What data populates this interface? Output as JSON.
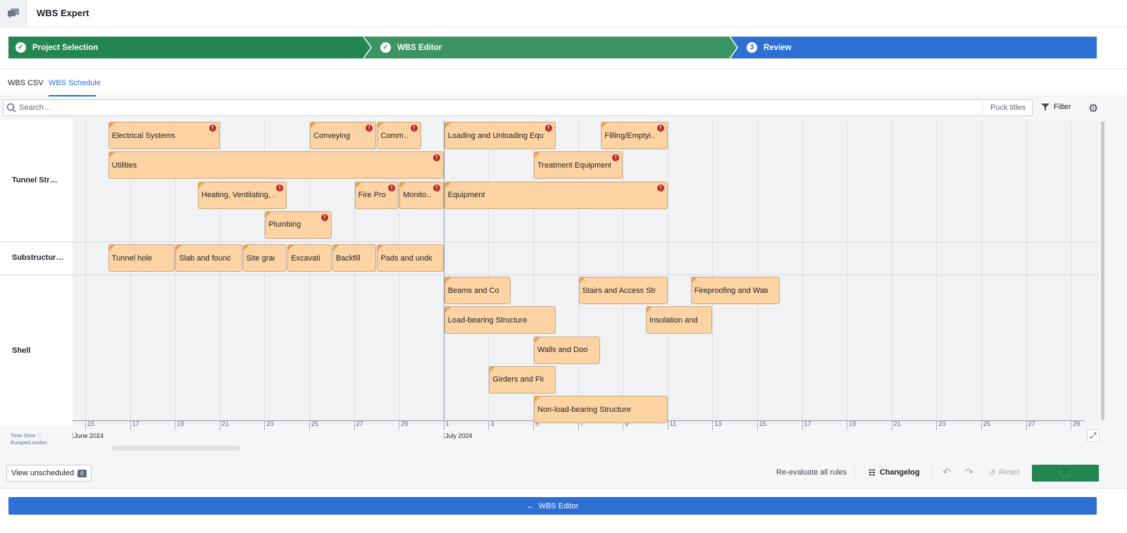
{
  "app": {
    "title": "WBS Expert",
    "icon": "chat-icon"
  },
  "steps": [
    {
      "label": "Project Selection",
      "state": "done",
      "color": "#23854f"
    },
    {
      "label": "WBS Editor",
      "state": "done",
      "color": "#3d9463"
    },
    {
      "label": "Review",
      "number": "3",
      "state": "active",
      "color": "#2d6fd2"
    }
  ],
  "tabs": [
    {
      "label": "WBS CSV"
    },
    {
      "label": "WBS Schedule",
      "active": true
    }
  ],
  "toolbar": {
    "search_placeholder": "Search…",
    "puck_titles": "Puck titles",
    "filter": "Filter"
  },
  "timeline": {
    "ticks": [
      "15",
      "17",
      "19",
      "21",
      "23",
      "25",
      "27",
      "29",
      "1",
      "3",
      "5",
      "7",
      "9",
      "11",
      "13",
      "15",
      "17",
      "19",
      "21",
      "23",
      "25",
      "27",
      "29"
    ],
    "months": [
      "June 2024",
      "July 2024"
    ],
    "timezone_label": "Time Zone",
    "timezone": "Europe/London",
    "rows": [
      {
        "label": "Tunnel Str…",
        "pucks": [
          {
            "title": "Electrical Systems",
            "start": "2024-06-16",
            "end": "2024-06-21",
            "lane": 0,
            "error": true
          },
          {
            "title": "Conveying",
            "start": "2024-06-25",
            "end": "2024-06-28",
            "lane": 0,
            "error": true
          },
          {
            "title": "Comm…",
            "start": "2024-06-28",
            "end": "2024-06-30",
            "lane": 0,
            "error": true
          },
          {
            "title": "Loading and Unloading Equi…",
            "start": "2024-07-01",
            "end": "2024-07-06",
            "lane": 0,
            "error": true
          },
          {
            "title": "Filling/Emptyi…",
            "start": "2024-07-08",
            "end": "2024-07-11",
            "lane": 0,
            "error": true
          },
          {
            "title": "Utilities",
            "start": "2024-06-16",
            "end": "2024-07-01",
            "lane": 1,
            "error": true
          },
          {
            "title": "Treatment Equipment",
            "start": "2024-07-05",
            "end": "2024-07-09",
            "lane": 1,
            "error": true
          },
          {
            "title": "Heating, Ventilating, …",
            "start": "2024-06-20",
            "end": "2024-06-24",
            "lane": 2,
            "error": true
          },
          {
            "title": "Fire Pro…",
            "start": "2024-06-27",
            "end": "2024-06-29",
            "lane": 2,
            "error": true
          },
          {
            "title": "Monito…",
            "start": "2024-06-29",
            "end": "2024-07-01",
            "lane": 2,
            "error": true
          },
          {
            "title": "Equipment",
            "start": "2024-07-01",
            "end": "2024-07-11",
            "lane": 2,
            "error": true
          },
          {
            "title": "Plumbing",
            "start": "2024-06-23",
            "end": "2024-06-26",
            "lane": 3,
            "error": true
          }
        ]
      },
      {
        "label": "Substructur…",
        "pucks": [
          {
            "title": "Tunnel hole",
            "start": "2024-06-16",
            "end": "2024-06-19",
            "lane": 0
          },
          {
            "title": "Slab and founda…",
            "start": "2024-06-19",
            "end": "2024-06-22",
            "lane": 0
          },
          {
            "title": "Site grading",
            "start": "2024-06-22",
            "end": "2024-06-24",
            "lane": 0
          },
          {
            "title": "Excavatio…",
            "start": "2024-06-24",
            "end": "2024-06-26",
            "lane": 0
          },
          {
            "title": "Backfill",
            "start": "2024-06-26",
            "end": "2024-06-28",
            "lane": 0
          },
          {
            "title": "Pads and under…",
            "start": "2024-06-28",
            "end": "2024-07-01",
            "lane": 0
          }
        ]
      },
      {
        "label": "Shell",
        "pucks": [
          {
            "title": "Beams and Colu…",
            "start": "2024-07-01",
            "end": "2024-07-04",
            "lane": 0
          },
          {
            "title": "Stairs and Access Struct…",
            "start": "2024-07-07",
            "end": "2024-07-11",
            "lane": 0
          },
          {
            "title": "Fireproofing and Water…",
            "start": "2024-07-12",
            "end": "2024-07-16",
            "lane": 0
          },
          {
            "title": "Load-bearing Structure",
            "start": "2024-07-01",
            "end": "2024-07-06",
            "lane": 1
          },
          {
            "title": "Insulation and S…",
            "start": "2024-07-10",
            "end": "2024-07-13",
            "lane": 1
          },
          {
            "title": "Walls and Doors",
            "start": "2024-07-05",
            "end": "2024-07-08",
            "lane": 2
          },
          {
            "title": "Girders and Floors",
            "start": "2024-07-03",
            "end": "2024-07-06",
            "lane": 3
          },
          {
            "title": "Non-load-bearing Structure",
            "start": "2024-07-05",
            "end": "2024-07-11",
            "lane": 4
          }
        ]
      }
    ]
  },
  "footer": {
    "view_unscheduled": "View unscheduled",
    "unscheduled_count": "0",
    "reevaluate": "Re-evaluate all rules",
    "changelog": "Changelog",
    "reset": "Reset",
    "back_button": "WBS Editor"
  }
}
